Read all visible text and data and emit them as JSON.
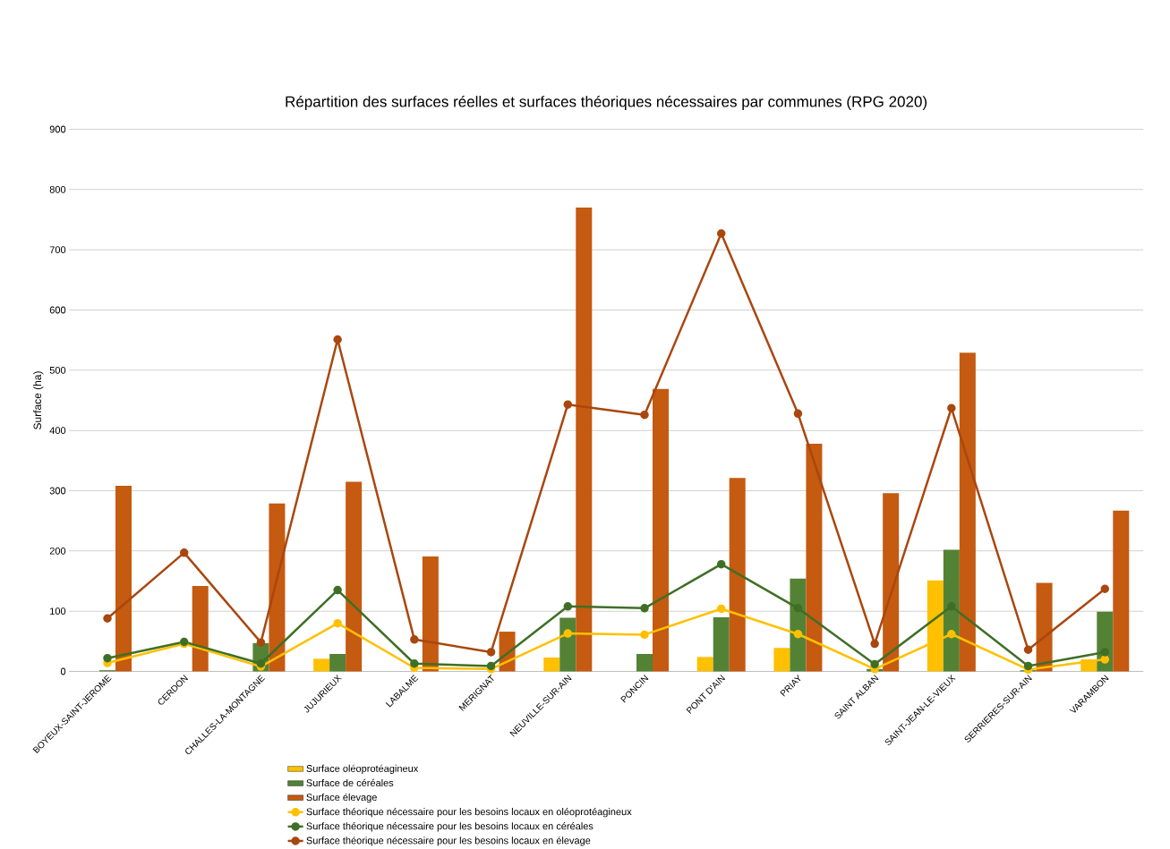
{
  "chart_data": {
    "type": "bar",
    "title": "Répartition des surfaces réelles et surfaces théoriques nécessaires par communes (RPG 2020)",
    "ylabel": "Surface (ha)",
    "categories": [
      "BOYEUX-SAINT-JEROME",
      "CERDON",
      "CHALLES-LA-MONTAGNE",
      "JUJURIEUX",
      "LABALME",
      "MERIGNAT",
      "NEUVILLE-SUR-AIN",
      "PONCIN",
      "PONT D'AIN",
      "PRIAY",
      "SAINT ALBAN",
      "SAINT-JEAN-LE-VIEUX",
      "SERRIERES-SUR-AIN",
      "VARAMBON"
    ],
    "series": [
      {
        "name": "Surface oléoprotéagineux",
        "color": "#ffc000",
        "values": [
          0,
          0,
          0,
          21,
          0,
          0,
          23,
          0,
          24,
          39,
          0,
          151,
          0,
          20
        ]
      },
      {
        "name": "Surface de céréales",
        "color": "#548235",
        "values": [
          2,
          0,
          47,
          29,
          0,
          0,
          89,
          29,
          90,
          154,
          4,
          202,
          2,
          99
        ]
      },
      {
        "name": "Surface élevage",
        "color": "#c55a11",
        "values": [
          308,
          142,
          279,
          315,
          191,
          66,
          770,
          469,
          321,
          378,
          296,
          529,
          147,
          267
        ]
      },
      {
        "name": "Surface théorique nécessaire pour les besoins locaux en oléoprotéagineux",
        "type": "line",
        "marker": "circle",
        "color": "#ffc000",
        "values": [
          14,
          46,
          8,
          80,
          6,
          4,
          63,
          61,
          104,
          62,
          4,
          62,
          3,
          20
        ]
      },
      {
        "name": "Surface théorique nécessaire pour les besoins locaux en céréales",
        "type": "line",
        "marker": "circle",
        "color": "#3f6f26",
        "values": [
          22,
          49,
          13,
          135,
          13,
          9,
          108,
          105,
          178,
          105,
          12,
          108,
          9,
          32
        ]
      },
      {
        "name": "Surface théorique nécessaire pour les besoins locaux en élevage",
        "type": "line",
        "marker": "circle",
        "color": "#a9470f",
        "values": [
          88,
          197,
          48,
          551,
          53,
          32,
          443,
          426,
          727,
          428,
          46,
          437,
          36,
          137
        ]
      }
    ],
    "ylim": [
      0,
      900
    ],
    "yticks": [
      0,
      100,
      200,
      300,
      400,
      500,
      600,
      700,
      800,
      900
    ],
    "grid": "y",
    "legend": "bottom"
  }
}
